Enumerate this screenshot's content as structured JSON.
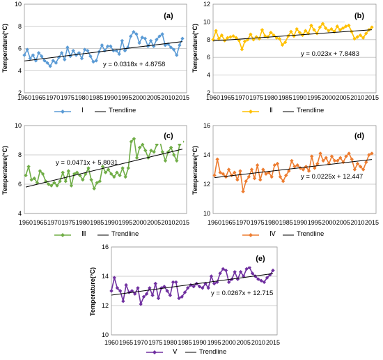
{
  "y_axis_label": "Temperature(°C)",
  "trendline_label": "Trendline",
  "chart_data": [
    {
      "type": "line",
      "panel": "(a)",
      "series_name": "Ⅰ",
      "color": "#5b9bd5",
      "x_ticks": [
        "1960",
        "1965",
        "1970",
        "1975",
        "1980",
        "1985",
        "1990",
        "1995",
        "2000",
        "2005",
        "2010",
        "2015"
      ],
      "ylim": [
        2,
        10
      ],
      "y_ticks": [
        "2",
        "4",
        "6",
        "8",
        "10"
      ],
      "equation": "y = 0.0318x + 4.8758",
      "slope": 0.0318,
      "intercept": 4.8758,
      "values": [
        5.4,
        5.9,
        5.1,
        5.4,
        4.9,
        5.6,
        5.3,
        4.9,
        4.7,
        4.4,
        4.9,
        4.7,
        5.2,
        5.6,
        5.0,
        6.1,
        5.3,
        5.8,
        5.4,
        5.6,
        5.1,
        5.9,
        5.8,
        5.3,
        4.8,
        4.9,
        5.7,
        6.3,
        5.8,
        6.2,
        6.2,
        5.8,
        5.8,
        5.5,
        6.7,
        5.8,
        6.1,
        7.1,
        7.5,
        7.3,
        6.5,
        7.0,
        6.9,
        6.2,
        6.7,
        6.2,
        6.8,
        7.1,
        7.3,
        6.3,
        6.4,
        6.1,
        5.9,
        5.4,
        6.3,
        6.9
      ]
    },
    {
      "type": "line",
      "panel": "(b)",
      "series_name": "Ⅱ",
      "color": "#ffc000",
      "x_ticks": [
        "1960",
        "1965",
        "1970",
        "1975",
        "1980",
        "1985",
        "1990",
        "1995",
        "2000",
        "2005",
        "2010",
        "2015"
      ],
      "ylim": [
        2,
        12
      ],
      "y_ticks": [
        "2",
        "4",
        "6",
        "8",
        "10",
        "12"
      ],
      "equation": "y = 0.023x + 7.8483",
      "slope": 0.023,
      "intercept": 7.8483,
      "values": [
        8.0,
        9.0,
        8.1,
        8.5,
        7.9,
        8.2,
        8.3,
        8.4,
        8.2,
        7.9,
        6.9,
        7.8,
        8.0,
        8.6,
        8.0,
        8.3,
        8.1,
        9.1,
        8.4,
        8.3,
        8.8,
        8.5,
        8.2,
        8.1,
        7.4,
        7.7,
        8.4,
        8.9,
        8.4,
        9.2,
        8.8,
        8.5,
        9.0,
        8.7,
        9.6,
        9.1,
        8.7,
        9.4,
        9.8,
        9.3,
        9.0,
        9.2,
        8.9,
        9.5,
        9.1,
        9.3,
        9.5,
        9.6,
        8.9,
        8.1,
        8.3,
        8.5,
        8.2,
        8.7,
        9.1,
        9.4
      ]
    },
    {
      "type": "line",
      "panel": "(c)",
      "series_name": "Ⅲ",
      "color": "#70ad47",
      "x_ticks": [
        "1960",
        "1965",
        "1970",
        "1975",
        "1980",
        "1985",
        "1990",
        "1995",
        "2000",
        "2005",
        "2010",
        "2015"
      ],
      "ylim": [
        4,
        10
      ],
      "y_ticks": [
        "4",
        "6",
        "8",
        "10"
      ],
      "equation": "y = 0.0471x + 5.8031",
      "slope": 0.0471,
      "intercept": 5.8031,
      "values": [
        6.6,
        7.2,
        6.3,
        6.4,
        6.1,
        6.9,
        6.7,
        6.2,
        6.0,
        5.9,
        6.1,
        5.9,
        6.2,
        6.8,
        6.2,
        6.9,
        5.9,
        6.7,
        6.8,
        6.6,
        6.3,
        6.7,
        7.1,
        6.3,
        5.7,
        6.1,
        6.2,
        7.2,
        6.8,
        7.0,
        6.7,
        6.5,
        6.8,
        6.6,
        7.1,
        6.5,
        7.1,
        8.9,
        9.1,
        7.8,
        8.5,
        8.7,
        8.3,
        7.8,
        8.3,
        8.2,
        8.7,
        9.0,
        8.2,
        7.6,
        8.2,
        8.5,
        8.0,
        7.6,
        8.7,
        8.9
      ]
    },
    {
      "type": "line",
      "panel": "(d)",
      "series_name": "Ⅳ",
      "color": "#ed7d31",
      "x_ticks": [
        "1960",
        "1965",
        "1970",
        "1975",
        "1980",
        "1985",
        "1990",
        "1995",
        "2000",
        "2005",
        "2010",
        "2015"
      ],
      "ylim": [
        10,
        16
      ],
      "y_ticks": [
        "10",
        "12",
        "14",
        "16"
      ],
      "equation": "y = 0.0225x + 12.447",
      "slope": 0.0225,
      "intercept": 12.447,
      "values": [
        12.6,
        13.7,
        12.8,
        12.7,
        12.5,
        13.0,
        12.6,
        12.8,
        12.3,
        12.9,
        11.5,
        12.2,
        12.5,
        13.0,
        12.4,
        13.3,
        12.3,
        13.0,
        12.7,
        12.8,
        12.5,
        13.3,
        13.4,
        12.5,
        12.2,
        12.6,
        12.9,
        13.6,
        13.2,
        13.3,
        13.1,
        13.0,
        13.2,
        12.9,
        13.9,
        13.1,
        13.4,
        14.1,
        13.6,
        13.8,
        13.4,
        13.9,
        13.6,
        13.6,
        13.8,
        13.5,
        13.9,
        14.1,
        13.7,
        13.0,
        13.4,
        13.2,
        13.0,
        13.5,
        14.0,
        14.1
      ]
    },
    {
      "type": "line",
      "panel": "(e)",
      "series_name": "Ⅴ",
      "color": "#7030a0",
      "x_ticks": [
        "1960",
        "1965",
        "1970",
        "1975",
        "1980",
        "1985",
        "1990",
        "1995",
        "2000",
        "2005",
        "2010",
        "2015"
      ],
      "ylim": [
        10,
        16
      ],
      "y_ticks": [
        "10",
        "12",
        "14",
        "16"
      ],
      "equation": "y = 0.0267x + 12.715",
      "slope": 0.0267,
      "intercept": 12.715,
      "values": [
        13.0,
        13.9,
        13.2,
        13.0,
        12.3,
        13.4,
        12.9,
        13.0,
        12.8,
        13.2,
        12.1,
        12.6,
        12.8,
        13.2,
        12.7,
        13.5,
        12.5,
        13.2,
        13.3,
        13.0,
        12.7,
        13.6,
        13.6,
        12.5,
        12.6,
        12.9,
        13.2,
        13.4,
        13.3,
        13.5,
        13.3,
        13.2,
        13.5,
        13.2,
        14.0,
        13.5,
        13.6,
        14.2,
        14.5,
        14.4,
        13.6,
        13.8,
        14.3,
        13.8,
        14.3,
        14.0,
        14.5,
        14.6,
        14.2,
        14.0,
        13.8,
        13.7,
        13.6,
        13.9,
        14.1,
        14.4
      ]
    }
  ]
}
